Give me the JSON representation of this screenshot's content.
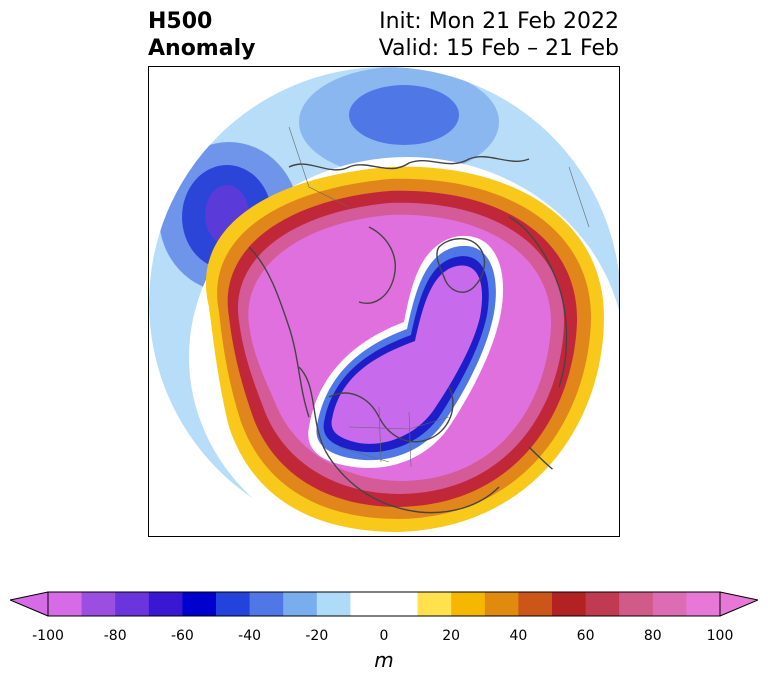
{
  "title": {
    "left_line1": "H500",
    "left_line2": "Anomaly",
    "right_line1": "Init: Mon 21 Feb 2022",
    "right_line2": "Valid: 15 Feb – 21 Feb"
  },
  "colorbar": {
    "unit": "m",
    "tick_labels": [
      "-100",
      "-80",
      "-60",
      "-40",
      "-20",
      "0",
      "20",
      "40",
      "60",
      "80",
      "100"
    ],
    "colors": [
      "#d66be6",
      "#9b4fe0",
      "#6a35dd",
      "#3a18d2",
      "#0000cc",
      "#2244dd",
      "#4f78e6",
      "#78aeee",
      "#aedcf8",
      "#ffffff",
      "#ffffff",
      "#ffe04d",
      "#f5b700",
      "#e08a10",
      "#cc5518",
      "#b22222",
      "#c03a52",
      "#d05a88",
      "#dc6cb4",
      "#e878d8"
    ],
    "value_range": [
      -100,
      100
    ],
    "extend": "both"
  },
  "map": {
    "projection": "north polar stereographic",
    "palette": {
      "strong_pos": "#e070dd",
      "pos_mid": "#d45a98",
      "pos_red": "#c0283a",
      "pos_orange": "#e0861a",
      "pos_yellow": "#f8c81a",
      "neg_light": "#b7ddf8",
      "neg_mid": "#6f95ea",
      "neg_deep": "#1d1ec8",
      "neg_core": "#c86aec",
      "coast": "#444444"
    }
  }
}
